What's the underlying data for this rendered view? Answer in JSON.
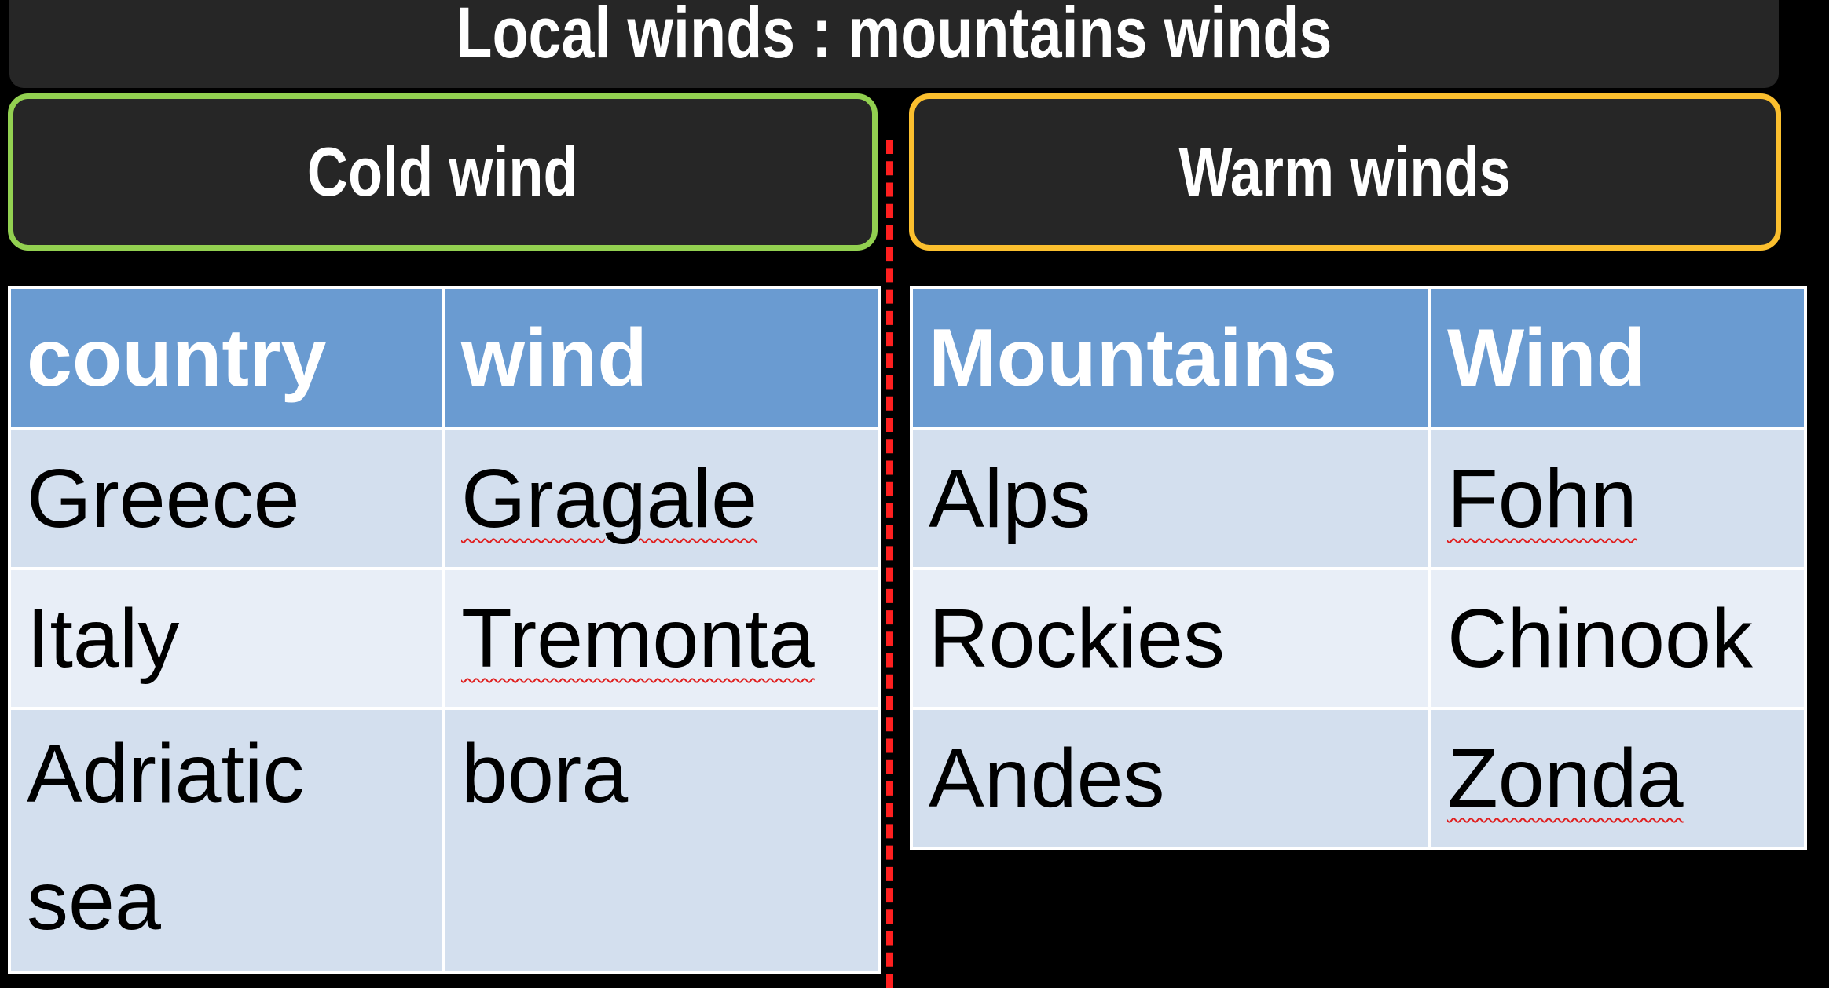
{
  "slide": {
    "title": "Local winds : mountains winds"
  },
  "cold_panel": {
    "heading": "Cold wind",
    "border_color": "#92d050",
    "columns": [
      "country",
      "wind"
    ],
    "rows": [
      {
        "country": "Greece",
        "wind": "Gragale"
      },
      {
        "country": "Italy",
        "wind": "Tremonta"
      },
      {
        "country": "Adriatic sea",
        "wind": "bora"
      }
    ]
  },
  "warm_panel": {
    "heading": "Warm winds",
    "border_color": "#fbbf2e",
    "columns": [
      "Mountains",
      "Wind"
    ],
    "rows": [
      {
        "mountain": "Alps",
        "wind": "Fohn"
      },
      {
        "mountain": "Rockies",
        "wind": "Chinook"
      },
      {
        "mountain": "Andes",
        "wind": "Zonda"
      }
    ]
  },
  "colors": {
    "background": "#000000",
    "header_fill": "#262626",
    "table_header": "#6a9bd1",
    "row_odd": "#d3dfee",
    "row_even": "#e8eef7",
    "divider": "#ff1f1f"
  }
}
